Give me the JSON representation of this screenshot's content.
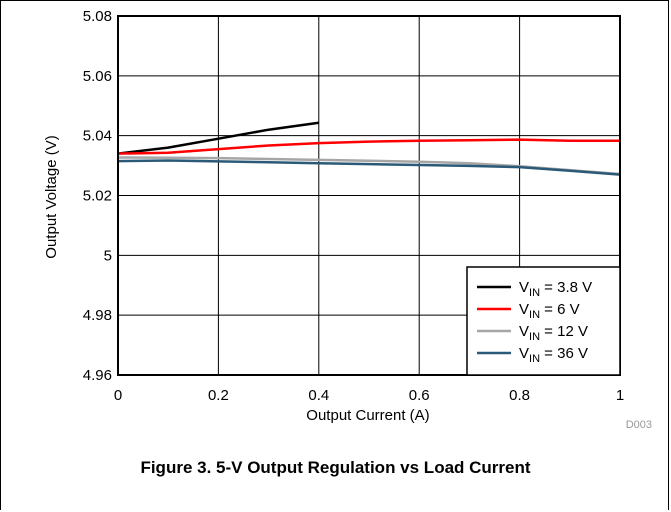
{
  "chart_data": {
    "type": "line",
    "xlabel": "Output Current (A)",
    "ylabel": "Output Voltage (V)",
    "xlim": [
      0,
      1
    ],
    "ylim": [
      4.96,
      5.08
    ],
    "x_ticks": [
      "0",
      "0.2",
      "0.4",
      "0.6",
      "0.8",
      "1"
    ],
    "y_ticks": [
      "4.96",
      "4.98",
      "5",
      "5.02",
      "5.04",
      "5.06",
      "5.08"
    ],
    "grid": true,
    "legend_position": "bottom-right",
    "series": [
      {
        "legend_main": "V",
        "legend_sub": "IN",
        "legend_rest": " = 3.8 V",
        "color": "#000000",
        "x": [
          0,
          0.1,
          0.2,
          0.3,
          0.4
        ],
        "y": [
          5.034,
          5.036,
          5.039,
          5.042,
          5.0443
        ]
      },
      {
        "legend_main": "V",
        "legend_sub": "IN",
        "legend_rest": " = 6 V",
        "color": "#ff0000",
        "x": [
          0,
          0.1,
          0.2,
          0.3,
          0.4,
          0.5,
          0.6,
          0.7,
          0.8,
          0.9,
          1.0
        ],
        "y": [
          5.034,
          5.0343,
          5.0355,
          5.0367,
          5.0375,
          5.038,
          5.0383,
          5.0385,
          5.0387,
          5.0383,
          5.0383
        ]
      },
      {
        "legend_main": "V",
        "legend_sub": "IN",
        "legend_rest": " = 12 V",
        "color": "#a6a6a6",
        "x": [
          0,
          0.1,
          0.2,
          0.3,
          0.4,
          0.5,
          0.6,
          0.7,
          0.8,
          0.9,
          1.0
        ],
        "y": [
          5.0327,
          5.0326,
          5.0325,
          5.0322,
          5.0319,
          5.0316,
          5.0313,
          5.0308,
          5.0298,
          5.0285,
          5.0272
        ]
      },
      {
        "legend_main": "V",
        "legend_sub": "IN",
        "legend_rest": " = 36 V",
        "color": "#2b5a78",
        "x": [
          0,
          0.1,
          0.2,
          0.3,
          0.4,
          0.5,
          0.6,
          0.7,
          0.8,
          0.9,
          1.0
        ],
        "y": [
          5.0315,
          5.0317,
          5.0314,
          5.0311,
          5.0308,
          5.0305,
          5.0302,
          5.0299,
          5.0295,
          5.0283,
          5.027
        ]
      }
    ]
  },
  "figure_id": "D003",
  "caption": "Figure 3. 5-V Output Regulation vs Load Current"
}
